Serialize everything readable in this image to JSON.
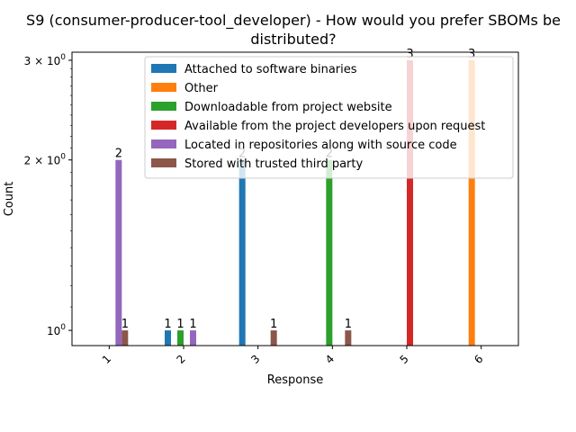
{
  "chart_data": {
    "type": "bar",
    "title_line1": "S9 (consumer-producer-tool_developer) - How would you prefer SBOMs be",
    "title_line2": "distributed?",
    "xlabel": "Response",
    "ylabel": "Count",
    "yscale": "log",
    "ylim": [
      0.94,
      3.1
    ],
    "yticks": [
      {
        "value": 1,
        "base": "10",
        "exp": "0",
        "prefix": ""
      },
      {
        "value": 2,
        "base": "10",
        "exp": "0",
        "prefix": "2 × "
      },
      {
        "value": 3,
        "base": "10",
        "exp": "0",
        "prefix": "3 × "
      }
    ],
    "categories": [
      "1",
      "2",
      "3",
      "4",
      "5",
      "6"
    ],
    "legend_position": "upper center",
    "series": [
      {
        "name": "Attached to software binaries",
        "color": "#1f77b4",
        "values": [
          0,
          1,
          2,
          0,
          0,
          0
        ]
      },
      {
        "name": "Other",
        "color": "#ff7f0e",
        "values": [
          0,
          0,
          0,
          0,
          0,
          3
        ]
      },
      {
        "name": "Downloadable from project website",
        "color": "#2ca02c",
        "values": [
          0,
          1,
          0,
          2,
          0,
          0
        ]
      },
      {
        "name": "Available from the project developers upon request",
        "color": "#d62728",
        "values": [
          0,
          0,
          0,
          0,
          3,
          0
        ]
      },
      {
        "name": "Located in repositories along with source code",
        "color": "#9467bd",
        "values": [
          2,
          1,
          0,
          0,
          0,
          0
        ]
      },
      {
        "name": "Stored with trusted third party",
        "color": "#8c564b",
        "values": [
          1,
          0,
          1,
          1,
          0,
          0
        ]
      }
    ]
  }
}
